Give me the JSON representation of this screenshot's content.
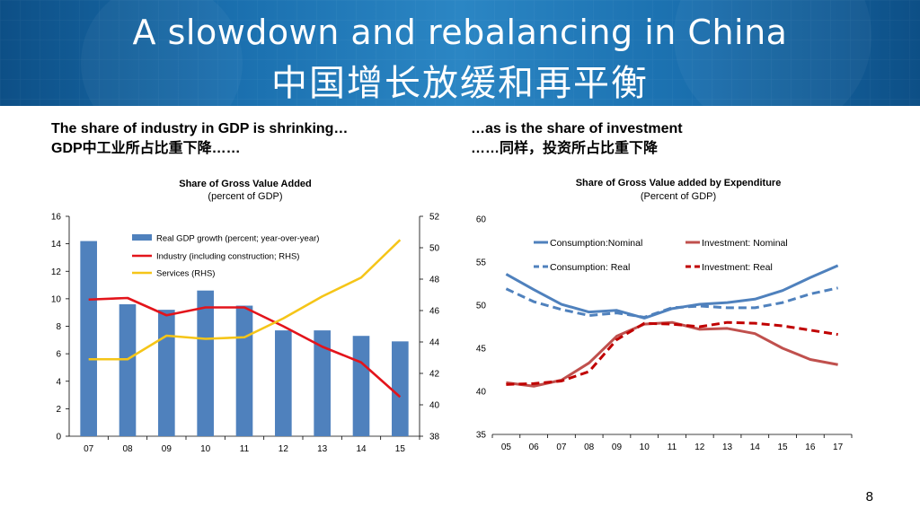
{
  "slide": {
    "title_en": "A slowdown and rebalancing in China",
    "title_cn": "中国增长放缓和再平衡",
    "left_heading_en": "The share of industry in GDP is shrinking…",
    "left_heading_cn": "GDP中工业所占比重下降……",
    "right_heading_en": "…as is the share of investment",
    "right_heading_cn": "……同样，投资所占比重下降",
    "page_number": "8"
  },
  "colors": {
    "bar": "#4f81bd",
    "industry": "#e3141b",
    "services": "#f5c518",
    "consumption": "#4f81bd",
    "investment": "#c0504d",
    "investment_real": "#c00000",
    "banner": "#1a6fae"
  },
  "chart_data": [
    {
      "type": "bar",
      "title": "Share of Gross Value Added",
      "subtitle": "(percent of GDP)",
      "categories": [
        "07",
        "08",
        "09",
        "10",
        "11",
        "12",
        "13",
        "14",
        "15"
      ],
      "ylim": [
        0,
        16
      ],
      "yticks": [
        "0",
        "2",
        "4",
        "6",
        "8",
        "10",
        "12",
        "14",
        "16"
      ],
      "y2lim": [
        38,
        52
      ],
      "y2ticks": [
        "38",
        "40",
        "42",
        "44",
        "46",
        "48",
        "50",
        "52"
      ],
      "series": [
        {
          "name": "Real GDP growth (percent; year-over-year)",
          "kind": "bar",
          "axis": "left",
          "values": [
            14.2,
            9.6,
            9.2,
            10.6,
            9.5,
            7.7,
            7.7,
            7.3,
            6.9
          ]
        },
        {
          "name": "Industry (including construction; RHS)",
          "kind": "line",
          "axis": "right",
          "values": [
            46.7,
            46.8,
            45.7,
            46.2,
            46.2,
            45.0,
            43.7,
            42.7,
            40.5
          ]
        },
        {
          "name": "Services (RHS)",
          "kind": "line",
          "axis": "right",
          "values": [
            42.9,
            42.9,
            44.4,
            44.2,
            44.3,
            45.5,
            46.9,
            48.1,
            50.5
          ]
        }
      ]
    },
    {
      "type": "line",
      "title": "Share of Gross Value added by Expenditure",
      "subtitle": "(Percent of GDP)",
      "categories": [
        "05",
        "06",
        "07",
        "08",
        "09",
        "10",
        "11",
        "12",
        "13",
        "14",
        "15",
        "16",
        "17"
      ],
      "ylim": [
        35,
        60
      ],
      "yticks": [
        "35",
        "40",
        "45",
        "50",
        "55",
        "60"
      ],
      "series": [
        {
          "name": "Consumption:Nominal",
          "style": "solid",
          "values": [
            53.6,
            51.8,
            50.1,
            49.2,
            49.4,
            48.5,
            49.6,
            50.1,
            50.3,
            50.7,
            51.7,
            53.2,
            54.6
          ]
        },
        {
          "name": "Investment: Nominal",
          "style": "solid",
          "values": [
            41.0,
            40.6,
            41.3,
            43.3,
            46.4,
            47.8,
            48.0,
            47.2,
            47.3,
            46.7,
            45.0,
            43.7,
            43.1
          ]
        },
        {
          "name": "Consumption: Real",
          "style": "dashed",
          "values": [
            51.9,
            50.4,
            49.5,
            48.8,
            49.1,
            48.6,
            49.7,
            49.9,
            49.7,
            49.7,
            50.3,
            51.3,
            52.0
          ]
        },
        {
          "name": "Investment: Real",
          "style": "dashed",
          "values": [
            40.8,
            40.9,
            41.2,
            42.3,
            46.0,
            47.9,
            47.8,
            47.5,
            48.0,
            47.9,
            47.6,
            47.1,
            46.6
          ]
        }
      ]
    }
  ]
}
